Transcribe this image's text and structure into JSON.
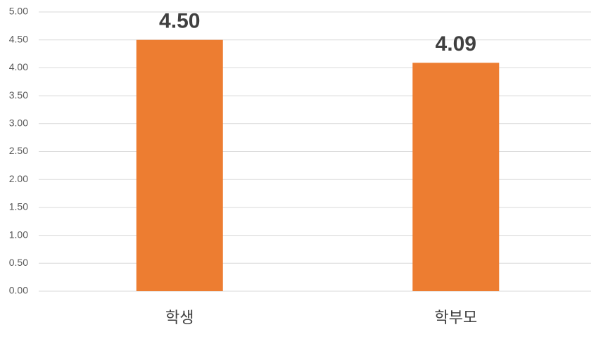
{
  "chart_data": {
    "type": "bar",
    "categories": [
      "학생",
      "학부모"
    ],
    "values": [
      4.5,
      4.09
    ],
    "value_labels": [
      "4.50",
      "4.09"
    ],
    "color": "#ed7d31",
    "ylim": [
      0,
      5
    ],
    "yticks": [
      {
        "value": 0,
        "label": "0.00"
      },
      {
        "value": 0.5,
        "label": "0.50"
      },
      {
        "value": 1,
        "label": "1.00"
      },
      {
        "value": 1.5,
        "label": "1.50"
      },
      {
        "value": 2,
        "label": "2.00"
      },
      {
        "value": 2.5,
        "label": "2.50"
      },
      {
        "value": 3,
        "label": "3.00"
      },
      {
        "value": 3.5,
        "label": "3.50"
      },
      {
        "value": 4,
        "label": "4.00"
      },
      {
        "value": 4.5,
        "label": "4.50"
      },
      {
        "value": 5,
        "label": "5.00"
      }
    ],
    "grid": true
  }
}
